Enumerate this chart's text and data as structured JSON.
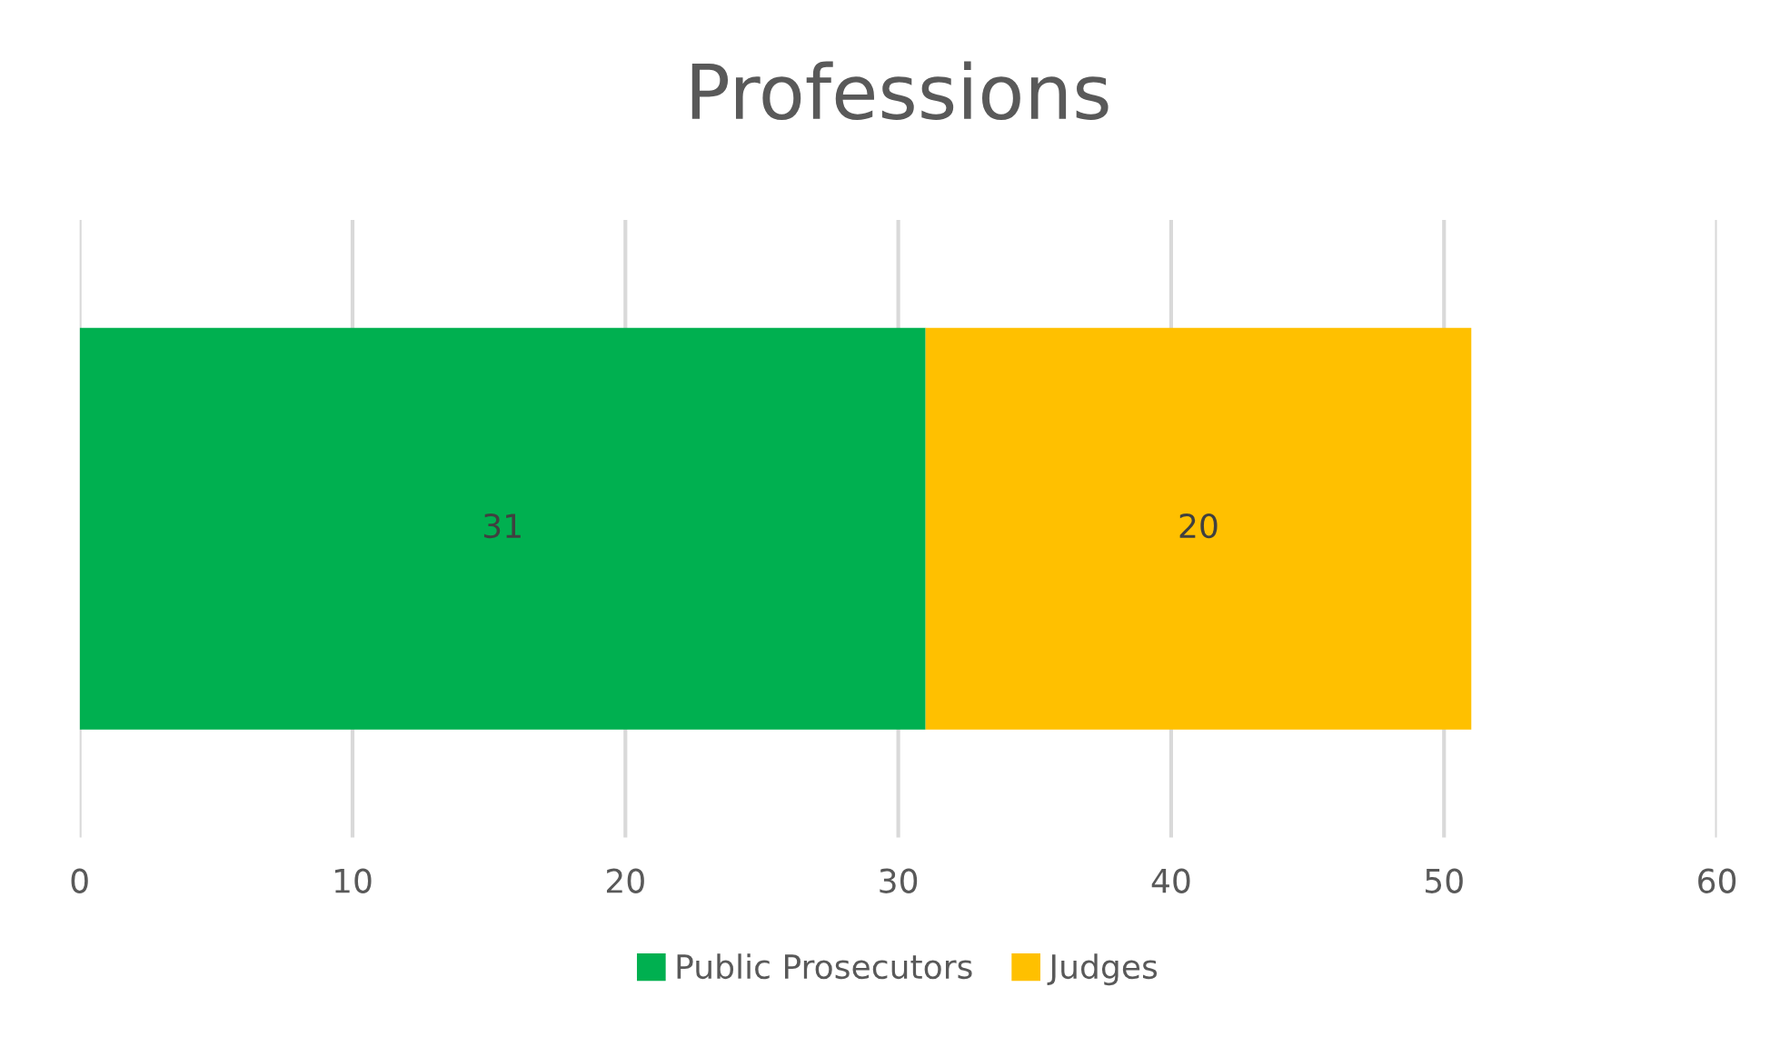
{
  "chart_data": {
    "type": "bar",
    "title": "Professions",
    "orientation": "horizontal",
    "stacked": true,
    "categories": [
      null
    ],
    "series": [
      {
        "name": "Public Prosecutors",
        "color": "#00b050",
        "values": [
          31
        ]
      },
      {
        "name": "Judges",
        "color": "#ffc000",
        "values": [
          20
        ]
      }
    ],
    "xlim": [
      0,
      60
    ],
    "xticks": [
      0,
      10,
      20,
      30,
      40,
      50,
      60
    ],
    "grid": "x",
    "legend": "bottom",
    "data_labels": true
  }
}
